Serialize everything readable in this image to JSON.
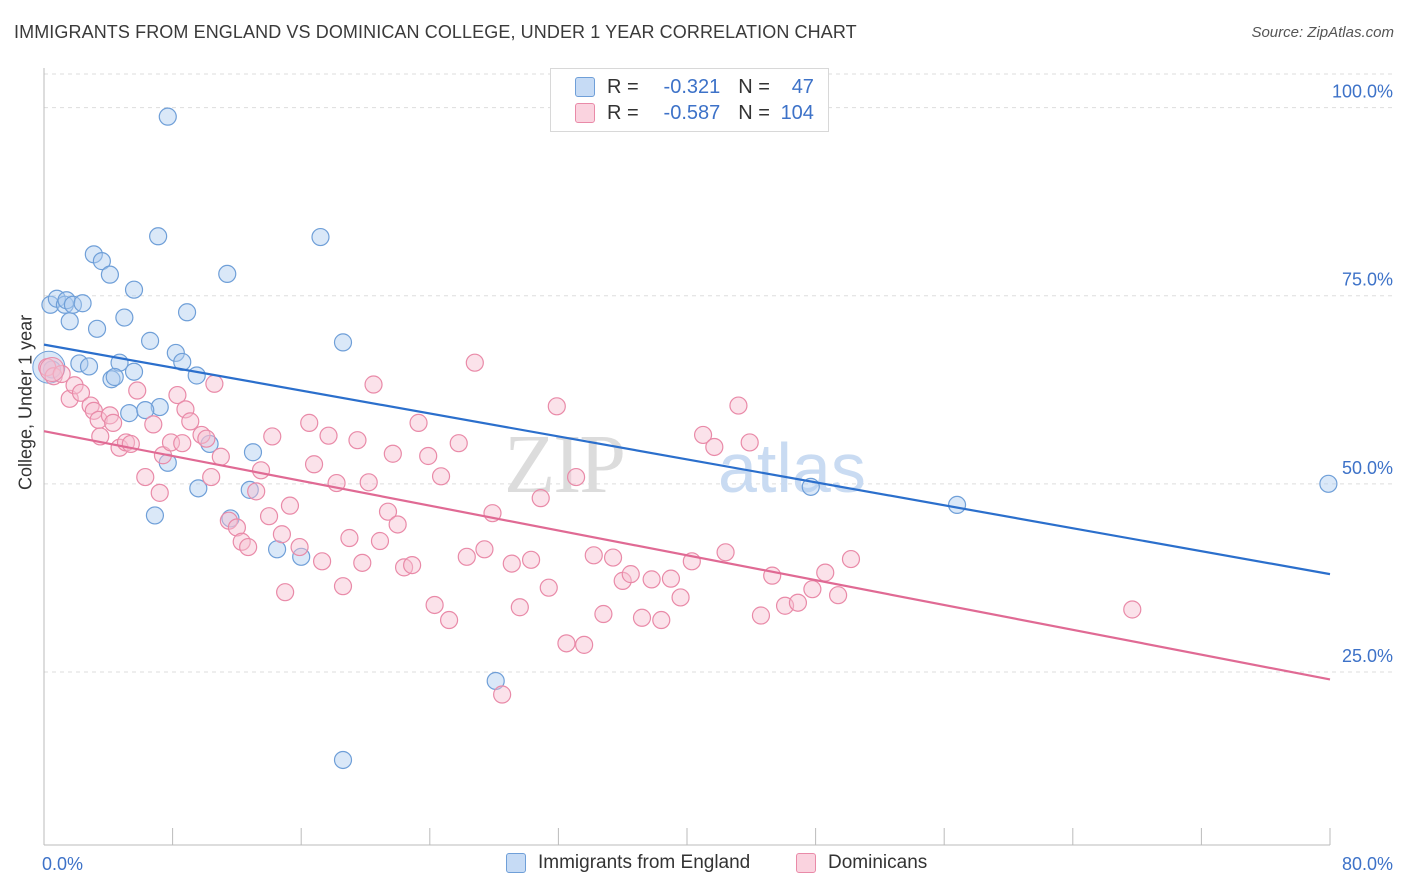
{
  "title": "IMMIGRANTS FROM ENGLAND VS DOMINICAN COLLEGE, UNDER 1 YEAR CORRELATION CHART",
  "source": "Source: ZipAtlas.com",
  "watermark": {
    "zip": "ZIP",
    "atlas": "atlas"
  },
  "legend": {
    "row1": {
      "r_label": "R =",
      "r_value": "-0.321",
      "n_label": "N =",
      "n_value": "47"
    },
    "row2": {
      "r_label": "R =",
      "r_value": "-0.587",
      "n_label": "N =",
      "n_value": "104"
    }
  },
  "colors": {
    "blue_fill": "#aecbef",
    "blue_stroke": "#6f9fd8",
    "blue_line": "#2b6fcc",
    "pink_fill": "#f6bfd0",
    "pink_stroke": "#e98aa8",
    "pink_line": "#e06a94",
    "axis_text": "#3d72c8",
    "grid": "#dddddd"
  },
  "chart_data": {
    "type": "scatter",
    "title": "IMMIGRANTS FROM ENGLAND VS DOMINICAN COLLEGE, UNDER 1 YEAR CORRELATION CHART",
    "xlabel": "",
    "ylabel": "College, Under 1 year",
    "xlim": [
      0,
      80
    ],
    "ylim": [
      2,
      105
    ],
    "x_tick_labels": [
      "0.0%",
      "80.0%"
    ],
    "y_ticks": [
      25,
      50,
      75,
      100
    ],
    "y_tick_labels": [
      "25.0%",
      "50.0%",
      "75.0%",
      "100.0%"
    ],
    "grid": true,
    "legend_position": "bottom",
    "series": [
      {
        "name": "Immigrants from England",
        "r": -0.321,
        "n": 47,
        "trend": {
          "x": [
            0,
            80
          ],
          "y": [
            68.5,
            38.0
          ]
        },
        "points": [
          [
            7.7,
            98.8
          ],
          [
            0.4,
            73.8
          ],
          [
            0.8,
            74.6
          ],
          [
            1.3,
            73.8
          ],
          [
            1.4,
            74.4
          ],
          [
            1.6,
            71.6
          ],
          [
            1.8,
            73.8
          ],
          [
            2.4,
            74.0
          ],
          [
            3.1,
            80.5
          ],
          [
            3.6,
            79.6
          ],
          [
            4.1,
            77.8
          ],
          [
            5.6,
            75.8
          ],
          [
            5.0,
            72.1
          ],
          [
            3.3,
            70.6
          ],
          [
            6.6,
            69.0
          ],
          [
            8.9,
            72.8
          ],
          [
            7.1,
            82.9
          ],
          [
            11.4,
            77.9
          ],
          [
            17.2,
            82.8
          ],
          [
            2.2,
            66.0
          ],
          [
            2.8,
            65.6
          ],
          [
            4.7,
            66.1
          ],
          [
            5.6,
            64.9
          ],
          [
            4.2,
            63.9
          ],
          [
            4.4,
            64.2
          ],
          [
            8.2,
            67.4
          ],
          [
            8.6,
            66.2
          ],
          [
            9.5,
            64.4
          ],
          [
            18.6,
            68.8
          ],
          [
            0.5,
            65.2
          ],
          [
            5.3,
            59.4
          ],
          [
            7.2,
            60.2
          ],
          [
            6.3,
            59.8
          ],
          [
            10.3,
            55.3
          ],
          [
            13.0,
            54.2
          ],
          [
            7.7,
            52.8
          ],
          [
            9.6,
            49.4
          ],
          [
            12.8,
            49.2
          ],
          [
            11.6,
            45.4
          ],
          [
            6.9,
            45.8
          ],
          [
            14.5,
            41.3
          ],
          [
            16.0,
            40.3
          ],
          [
            47.7,
            49.6
          ],
          [
            56.8,
            47.2
          ],
          [
            79.9,
            50.0
          ],
          [
            28.1,
            23.8
          ],
          [
            18.6,
            13.3
          ]
        ]
      },
      {
        "name": "Dominicans",
        "r": -0.587,
        "n": 104,
        "trend": {
          "x": [
            0,
            80
          ],
          "y": [
            57.0,
            24.0
          ]
        },
        "points": [
          [
            0.2,
            65.5
          ],
          [
            0.6,
            64.3
          ],
          [
            1.1,
            64.6
          ],
          [
            1.6,
            61.3
          ],
          [
            1.9,
            63.1
          ],
          [
            2.3,
            62.1
          ],
          [
            2.9,
            60.4
          ],
          [
            3.1,
            59.7
          ],
          [
            3.4,
            58.5
          ],
          [
            3.5,
            56.3
          ],
          [
            4.1,
            59.1
          ],
          [
            4.3,
            58.1
          ],
          [
            4.7,
            54.8
          ],
          [
            5.1,
            55.5
          ],
          [
            5.4,
            55.3
          ],
          [
            5.8,
            62.4
          ],
          [
            6.3,
            50.9
          ],
          [
            6.8,
            57.9
          ],
          [
            7.2,
            48.8
          ],
          [
            7.4,
            53.8
          ],
          [
            7.9,
            55.5
          ],
          [
            8.3,
            61.8
          ],
          [
            8.6,
            55.4
          ],
          [
            8.8,
            59.9
          ],
          [
            9.1,
            58.3
          ],
          [
            9.8,
            56.5
          ],
          [
            10.1,
            56.0
          ],
          [
            10.4,
            50.9
          ],
          [
            10.6,
            63.3
          ],
          [
            11.0,
            53.6
          ],
          [
            11.5,
            45.1
          ],
          [
            12.0,
            44.2
          ],
          [
            12.3,
            42.3
          ],
          [
            12.7,
            41.6
          ],
          [
            13.2,
            49.0
          ],
          [
            13.5,
            51.8
          ],
          [
            14.0,
            45.7
          ],
          [
            14.2,
            56.3
          ],
          [
            14.8,
            43.3
          ],
          [
            15.0,
            35.6
          ],
          [
            15.3,
            47.1
          ],
          [
            15.9,
            41.6
          ],
          [
            16.5,
            58.1
          ],
          [
            16.8,
            52.6
          ],
          [
            17.3,
            39.7
          ],
          [
            17.7,
            56.4
          ],
          [
            18.2,
            50.1
          ],
          [
            18.6,
            36.4
          ],
          [
            19.0,
            42.8
          ],
          [
            19.5,
            55.8
          ],
          [
            19.8,
            39.5
          ],
          [
            20.2,
            50.2
          ],
          [
            20.5,
            63.2
          ],
          [
            20.9,
            42.4
          ],
          [
            21.4,
            46.3
          ],
          [
            21.7,
            54.0
          ],
          [
            22.0,
            44.6
          ],
          [
            22.4,
            38.9
          ],
          [
            22.9,
            39.2
          ],
          [
            23.3,
            58.1
          ],
          [
            23.9,
            53.7
          ],
          [
            24.3,
            33.9
          ],
          [
            24.7,
            51.0
          ],
          [
            25.2,
            31.9
          ],
          [
            25.8,
            55.4
          ],
          [
            26.3,
            40.3
          ],
          [
            26.8,
            66.1
          ],
          [
            27.4,
            41.3
          ],
          [
            27.9,
            46.1
          ],
          [
            28.5,
            22.0
          ],
          [
            29.1,
            39.4
          ],
          [
            29.6,
            33.6
          ],
          [
            30.3,
            39.9
          ],
          [
            30.9,
            48.1
          ],
          [
            31.4,
            36.2
          ],
          [
            31.9,
            60.3
          ],
          [
            32.5,
            28.8
          ],
          [
            33.1,
            50.9
          ],
          [
            33.6,
            28.6
          ],
          [
            34.2,
            40.5
          ],
          [
            34.8,
            32.7
          ],
          [
            35.4,
            40.2
          ],
          [
            36.0,
            37.1
          ],
          [
            36.5,
            38.0
          ],
          [
            37.2,
            32.2
          ],
          [
            37.8,
            37.3
          ],
          [
            38.4,
            31.9
          ],
          [
            39.0,
            37.4
          ],
          [
            39.6,
            34.9
          ],
          [
            40.3,
            39.7
          ],
          [
            41.0,
            56.5
          ],
          [
            41.7,
            54.9
          ],
          [
            42.4,
            40.9
          ],
          [
            43.2,
            60.4
          ],
          [
            43.9,
            55.5
          ],
          [
            44.6,
            32.5
          ],
          [
            45.3,
            37.8
          ],
          [
            46.1,
            33.8
          ],
          [
            46.9,
            34.2
          ],
          [
            47.8,
            36.0
          ],
          [
            48.6,
            38.2
          ],
          [
            49.4,
            35.2
          ],
          [
            50.2,
            40.0
          ],
          [
            67.7,
            33.3
          ]
        ]
      }
    ]
  },
  "bottom_legend": {
    "item1": "Immigrants from England",
    "item2": "Dominicans"
  }
}
